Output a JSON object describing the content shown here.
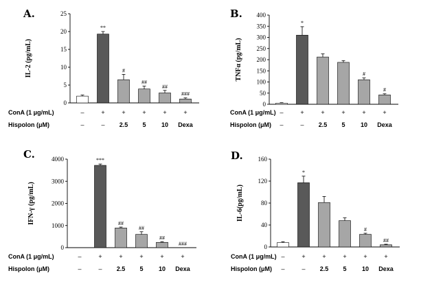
{
  "chart_data": [
    {
      "type": "bar",
      "panel": "A.",
      "ylabel": "IL-2 (pg/mL)",
      "ylim": [
        0,
        25
      ],
      "yticks": [
        0,
        5,
        10,
        15,
        20,
        25
      ],
      "values": [
        1.9,
        19.3,
        6.5,
        3.9,
        2.8,
        1.1
      ],
      "errors": [
        0.3,
        0.7,
        1.5,
        0.8,
        0.7,
        0.3
      ],
      "significance": [
        "",
        "**",
        "#",
        "##",
        "##",
        "###"
      ]
    },
    {
      "type": "bar",
      "panel": "B.",
      "ylabel": "TNFα (pg/mL)",
      "ylim": [
        0,
        400
      ],
      "yticks": [
        0,
        50,
        100,
        150,
        200,
        250,
        300,
        350,
        400
      ],
      "values": [
        5,
        310,
        212,
        188,
        110,
        42
      ],
      "errors": [
        2,
        38,
        14,
        8,
        8,
        5
      ],
      "significance": [
        "",
        "*",
        "",
        "",
        "#",
        "#"
      ]
    },
    {
      "type": "bar",
      "panel": "C.",
      "ylabel": "IFN-γ (pg/mL)",
      "ylim": [
        0,
        4000
      ],
      "yticks": [
        0,
        1000,
        2000,
        3000,
        4000
      ],
      "values": [
        0,
        3720,
        890,
        600,
        240,
        0
      ],
      "errors": [
        0,
        60,
        40,
        120,
        30,
        0
      ],
      "significance": [
        "",
        "***",
        "##",
        "##",
        "##",
        "###"
      ]
    },
    {
      "type": "bar",
      "panel": "D.",
      "ylabel": "IL-6(pg/mL)",
      "ylim": [
        0,
        160
      ],
      "yticks": [
        0,
        40,
        80,
        120,
        160
      ],
      "values": [
        8,
        117,
        81,
        48,
        23,
        4
      ],
      "errors": [
        1.5,
        12,
        11,
        5,
        2,
        1
      ],
      "significance": [
        "",
        "*",
        "",
        "",
        "#",
        "##"
      ]
    }
  ],
  "conditions": {
    "cona_label": "ConA (1 μg/mL)",
    "cona_row": [
      "–",
      "+",
      "+",
      "+",
      "+",
      "+"
    ],
    "hispolon_label": "Hispolon (μM)",
    "hispolon_row": [
      "–",
      "–",
      "2.5",
      "5",
      "10",
      "Dexa"
    ]
  },
  "bar_colors": [
    "#ffffff",
    "#595959",
    "#a6a6a6",
    "#a6a6a6",
    "#a6a6a6",
    "#a6a6a6"
  ]
}
